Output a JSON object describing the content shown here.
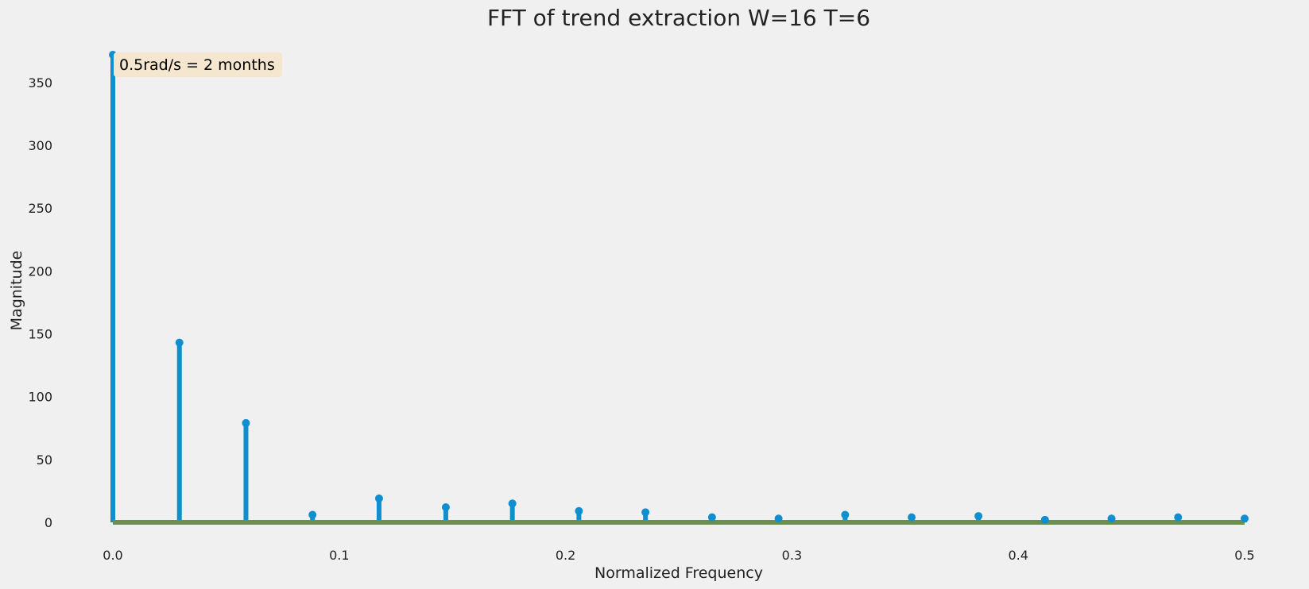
{
  "chart_data": {
    "type": "stem",
    "title": "FFT of trend extraction W=16 T=6",
    "xlabel": "Normalized Frequency",
    "ylabel": "Magnitude",
    "xlim": [
      0.0,
      0.5
    ],
    "ylim": [
      0,
      372
    ],
    "xticks": [
      "0.0",
      "0.1",
      "0.2",
      "0.3",
      "0.4",
      "0.5"
    ],
    "yticks": [
      "0",
      "50",
      "100",
      "150",
      "200",
      "250",
      "300",
      "350"
    ],
    "grid": false,
    "legend": "none",
    "annotation": "0.5rad/s = 2 months",
    "colors": {
      "stem": "#0f8fcf",
      "baseline": "#6b8f4e",
      "annotation_bg": "#f5e6cf",
      "background": "#f0f0f0"
    },
    "x": [
      0.0,
      0.0294,
      0.0588,
      0.0882,
      0.1176,
      0.1471,
      0.1765,
      0.2059,
      0.2353,
      0.2647,
      0.2941,
      0.3235,
      0.3529,
      0.3824,
      0.4118,
      0.4412,
      0.4706,
      0.5
    ],
    "values": [
      372,
      143,
      79,
      6,
      19,
      12,
      15,
      9,
      8,
      4,
      3,
      6,
      4,
      5,
      2,
      3,
      4,
      3
    ]
  }
}
